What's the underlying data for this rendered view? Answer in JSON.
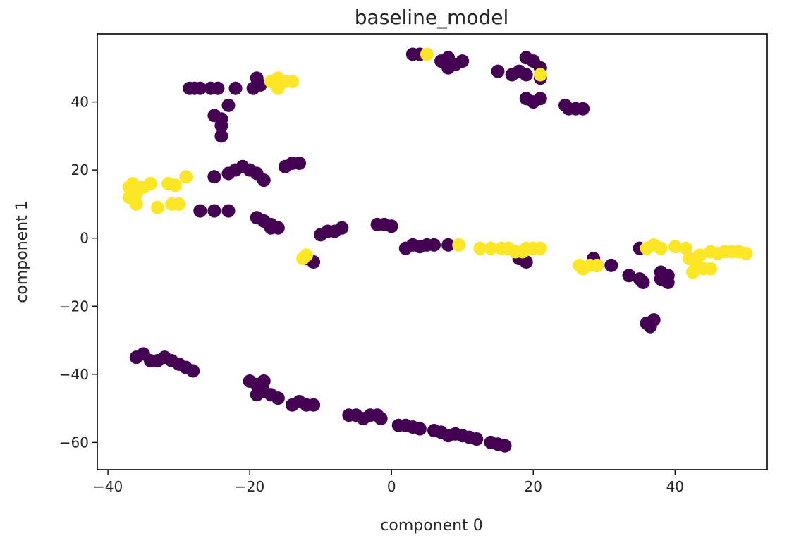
{
  "chart_data": {
    "type": "scatter",
    "title": "baseline_model",
    "xlabel": "component 0",
    "ylabel": "component 1",
    "xlim": [
      -41.5,
      53
    ],
    "ylim": [
      -68,
      60
    ],
    "xticks": [
      -40,
      -20,
      0,
      20,
      40
    ],
    "xtick_labels": [
      "−40",
      "−20",
      "0",
      "20",
      "40"
    ],
    "yticks": [
      -60,
      -40,
      -20,
      0,
      20,
      40
    ],
    "ytick_labels": [
      "−60",
      "−40",
      "−20",
      "0",
      "20",
      "40"
    ],
    "grid": false,
    "legend": "none",
    "colors": {
      "dark": "#440154",
      "light": "#fde725"
    },
    "series": [
      {
        "class": "dark",
        "points": [
          [
            -28.5,
            44
          ],
          [
            -27.8,
            44
          ],
          [
            -27,
            44
          ],
          [
            -25.5,
            44
          ],
          [
            -24.5,
            44
          ],
          [
            -22,
            44
          ],
          [
            -19,
            47
          ],
          [
            -18.5,
            45
          ],
          [
            -19.5,
            44
          ],
          [
            -25,
            36
          ],
          [
            -24,
            35
          ],
          [
            -24,
            33
          ],
          [
            -24,
            30
          ],
          [
            -23,
            39
          ],
          [
            -25,
            18
          ],
          [
            -23,
            19
          ],
          [
            -22,
            20
          ],
          [
            -21,
            21
          ],
          [
            -20,
            20
          ],
          [
            -19,
            19
          ],
          [
            -18,
            17
          ],
          [
            -15,
            21
          ],
          [
            -14,
            22
          ],
          [
            -13,
            22
          ],
          [
            -27,
            8
          ],
          [
            -25,
            8
          ],
          [
            -23,
            8
          ],
          [
            -19,
            6
          ],
          [
            -18,
            5
          ],
          [
            -17,
            4
          ],
          [
            -17,
            3
          ],
          [
            -16,
            3
          ],
          [
            -10,
            1
          ],
          [
            -9,
            2
          ],
          [
            -8,
            2
          ],
          [
            -7,
            3
          ],
          [
            -2,
            4
          ],
          [
            -1,
            4
          ],
          [
            0,
            3.5
          ],
          [
            2,
            -3
          ],
          [
            3,
            -2
          ],
          [
            4,
            -2.5
          ],
          [
            5,
            -2
          ],
          [
            6,
            -2
          ],
          [
            8,
            -2
          ],
          [
            3,
            54
          ],
          [
            4,
            54
          ],
          [
            7,
            52
          ],
          [
            8,
            50
          ],
          [
            8,
            53
          ],
          [
            9,
            51
          ],
          [
            10,
            52
          ],
          [
            15,
            49
          ],
          [
            17,
            48
          ],
          [
            18,
            49
          ],
          [
            19,
            48
          ],
          [
            19,
            53
          ],
          [
            20,
            52
          ],
          [
            21,
            50
          ],
          [
            21,
            47
          ],
          [
            19,
            41
          ],
          [
            20,
            40
          ],
          [
            21,
            41
          ],
          [
            24.5,
            39
          ],
          [
            25,
            38
          ],
          [
            26,
            38
          ],
          [
            27,
            38
          ],
          [
            18,
            -6
          ],
          [
            19,
            -7
          ],
          [
            28.5,
            -6
          ],
          [
            29,
            -8
          ],
          [
            31,
            -8
          ],
          [
            33.5,
            -11
          ],
          [
            35,
            -12
          ],
          [
            35.5,
            -13
          ],
          [
            35,
            -3
          ],
          [
            38,
            -10
          ],
          [
            39,
            -11
          ],
          [
            38,
            -12
          ],
          [
            39,
            -13
          ],
          [
            36,
            -25
          ],
          [
            37,
            -24
          ],
          [
            36.5,
            -26
          ],
          [
            -12,
            -6
          ],
          [
            -11,
            -7
          ],
          [
            -36,
            -35
          ],
          [
            -35,
            -34
          ],
          [
            -34,
            -36
          ],
          [
            -33,
            -36
          ],
          [
            -32,
            -35
          ],
          [
            -31,
            -36
          ],
          [
            -30,
            -37
          ],
          [
            -29,
            -38
          ],
          [
            -28,
            -39
          ],
          [
            -20,
            -42
          ],
          [
            -19,
            -43
          ],
          [
            -18,
            -42
          ],
          [
            -19,
            -46
          ],
          [
            -18,
            -45
          ],
          [
            -17,
            -46
          ],
          [
            -16,
            -47
          ],
          [
            -14,
            -49
          ],
          [
            -13,
            -48
          ],
          [
            -12,
            -49
          ],
          [
            -11,
            -49
          ],
          [
            -6,
            -52
          ],
          [
            -5,
            -52
          ],
          [
            -4,
            -53
          ],
          [
            -3,
            -52
          ],
          [
            -2,
            -52
          ],
          [
            -1.5,
            -53
          ],
          [
            1,
            -55
          ],
          [
            2,
            -55
          ],
          [
            3,
            -55.5
          ],
          [
            4,
            -56
          ],
          [
            6,
            -56.5
          ],
          [
            7,
            -57
          ],
          [
            8,
            -58
          ],
          [
            9,
            -57.5
          ],
          [
            10,
            -58
          ],
          [
            11,
            -58.5
          ],
          [
            12,
            -59
          ],
          [
            14,
            -60
          ],
          [
            15,
            -60.5
          ],
          [
            16,
            -61
          ]
        ]
      },
      {
        "class": "light",
        "points": [
          [
            -37,
            15
          ],
          [
            -36.5,
            16
          ],
          [
            -36,
            13
          ],
          [
            -37,
            12
          ],
          [
            -36,
            10
          ],
          [
            -35,
            15
          ],
          [
            -34,
            16
          ],
          [
            -33,
            9
          ],
          [
            -31.5,
            16
          ],
          [
            -30.5,
            15.5
          ],
          [
            -31,
            10
          ],
          [
            -30,
            10
          ],
          [
            -29,
            18
          ],
          [
            -17,
            46
          ],
          [
            -16,
            47
          ],
          [
            -15,
            46
          ],
          [
            -16,
            44
          ],
          [
            -14,
            46
          ],
          [
            5,
            54
          ],
          [
            21,
            48
          ],
          [
            -12,
            -5
          ],
          [
            -12.5,
            -6
          ],
          [
            9.5,
            -2
          ],
          [
            12.5,
            -3
          ],
          [
            14,
            -3
          ],
          [
            15.5,
            -3
          ],
          [
            16.5,
            -3
          ],
          [
            17.5,
            -4
          ],
          [
            18.5,
            -4
          ],
          [
            19,
            -3
          ],
          [
            20,
            -3
          ],
          [
            21,
            -3
          ],
          [
            26.5,
            -8
          ],
          [
            27,
            -9
          ],
          [
            28,
            -8
          ],
          [
            29,
            -8
          ],
          [
            36,
            -3
          ],
          [
            37,
            -2
          ],
          [
            38,
            -3
          ],
          [
            40,
            -2.5
          ],
          [
            41.5,
            -3
          ],
          [
            42,
            -6
          ],
          [
            42.5,
            -10
          ],
          [
            43,
            -8
          ],
          [
            44,
            -9
          ],
          [
            45,
            -9
          ],
          [
            43.5,
            -5
          ],
          [
            45,
            -4
          ],
          [
            46,
            -4.5
          ],
          [
            47,
            -4
          ],
          [
            48,
            -4
          ],
          [
            49,
            -4
          ],
          [
            50,
            -4.5
          ]
        ]
      }
    ]
  }
}
